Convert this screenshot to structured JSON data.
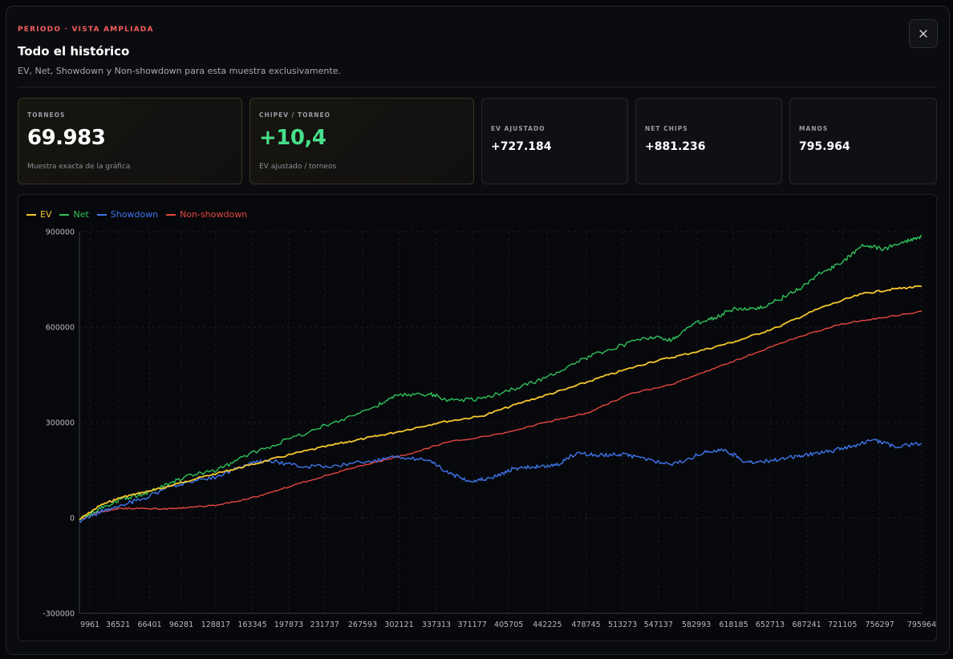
{
  "header": {
    "eyebrow": "PERIODO · VISTA AMPLIADA",
    "title": "Todo el histórico",
    "subtitle": "EV, Net, Showdown y Non-showdown para esta muestra exclusivamente.",
    "close_icon": "close-icon"
  },
  "stats": {
    "torneos": {
      "label": "TORNEOS",
      "value": "69.983",
      "sub": "Muestra exacta de la gráfica"
    },
    "chipev": {
      "label": "CHIPEV / TORNEO",
      "value": "+10,4",
      "sub": "EV ajustado / torneos"
    },
    "ev_ajustado": {
      "label": "EV AJUSTADO",
      "value": "+727.184"
    },
    "net_chips": {
      "label": "NET CHIPS",
      "value": "+881.236"
    },
    "manos": {
      "label": "MANOS",
      "value": "795.964"
    }
  },
  "colors": {
    "ev": "#f5c72e",
    "net": "#2fc25b",
    "showdown": "#3f76ee",
    "nonshowdown": "#e5473f",
    "accent_red": "#f25c5c",
    "accent_green": "#47e08a"
  },
  "chart_data": {
    "type": "line",
    "xlabel": "",
    "ylabel": "",
    "ylim": [
      -300000,
      900000
    ],
    "yticks": [
      900000,
      600000,
      300000,
      0,
      -300000
    ],
    "xticks": [
      9961,
      36521,
      66401,
      96281,
      128817,
      163345,
      197873,
      231737,
      267593,
      302121,
      337313,
      371177,
      405705,
      442225,
      478745,
      513273,
      547137,
      582993,
      618185,
      652713,
      687241,
      721105,
      756297,
      795964
    ],
    "xlim": [
      0,
      795964
    ],
    "grid": true,
    "legend_position": "top-left",
    "series": [
      {
        "name": "EV",
        "color": "#f5c72e",
        "x": [
          0,
          20000,
          40000,
          60000,
          80000,
          100000,
          130000,
          160000,
          200000,
          240000,
          270000,
          300000,
          340000,
          380000,
          420000,
          460000,
          500000,
          540000,
          580000,
          620000,
          660000,
          700000,
          740000,
          770000,
          795964
        ],
        "y": [
          -5000,
          40000,
          65000,
          80000,
          95000,
          115000,
          140000,
          165000,
          200000,
          230000,
          250000,
          270000,
          300000,
          320000,
          365000,
          405000,
          450000,
          490000,
          520000,
          555000,
          600000,
          660000,
          705000,
          720000,
          728000
        ]
      },
      {
        "name": "Net",
        "color": "#2fc25b",
        "x": [
          0,
          20000,
          40000,
          60000,
          80000,
          100000,
          130000,
          160000,
          200000,
          240000,
          280000,
          300000,
          330000,
          350000,
          380000,
          410000,
          440000,
          470000,
          500000,
          540000,
          560000,
          580000,
          600000,
          620000,
          640000,
          660000,
          680000,
          700000,
          720000,
          740000,
          760000,
          780000,
          795964
        ],
        "y": [
          -5000,
          30000,
          60000,
          75000,
          100000,
          130000,
          150000,
          200000,
          250000,
          300000,
          350000,
          385000,
          390000,
          370000,
          375000,
          405000,
          440000,
          490000,
          530000,
          570000,
          560000,
          610000,
          630000,
          660000,
          655000,
          685000,
          720000,
          770000,
          800000,
          860000,
          845000,
          870000,
          885000
        ]
      },
      {
        "name": "Showdown",
        "color": "#3f76ee",
        "x": [
          0,
          20000,
          40000,
          60000,
          80000,
          100000,
          130000,
          160000,
          180000,
          210000,
          240000,
          270000,
          300000,
          330000,
          350000,
          370000,
          390000,
          410000,
          430000,
          450000,
          470000,
          490000,
          510000,
          530000,
          560000,
          590000,
          610000,
          630000,
          650000,
          670000,
          690000,
          710000,
          730000,
          750000,
          770000,
          795964
        ],
        "y": [
          -10000,
          20000,
          40000,
          60000,
          90000,
          110000,
          130000,
          170000,
          180000,
          160000,
          165000,
          175000,
          195000,
          180000,
          140000,
          115000,
          125000,
          155000,
          160000,
          165000,
          205000,
          195000,
          200000,
          190000,
          165000,
          205000,
          215000,
          175000,
          180000,
          190000,
          200000,
          210000,
          225000,
          245000,
          225000,
          235000
        ]
      },
      {
        "name": "Non-showdown",
        "color": "#e5473f",
        "x": [
          0,
          20000,
          40000,
          60000,
          80000,
          100000,
          130000,
          160000,
          190000,
          220000,
          250000,
          280000,
          310000,
          350000,
          400000,
          440000,
          480000,
          520000,
          560000,
          600000,
          640000,
          680000,
          720000,
          760000,
          795964
        ],
        "y": [
          -5000,
          20000,
          30000,
          30000,
          28000,
          32000,
          40000,
          60000,
          90000,
          120000,
          150000,
          175000,
          200000,
          240000,
          265000,
          300000,
          330000,
          390000,
          420000,
          470000,
          520000,
          570000,
          610000,
          630000,
          650000
        ]
      }
    ]
  }
}
